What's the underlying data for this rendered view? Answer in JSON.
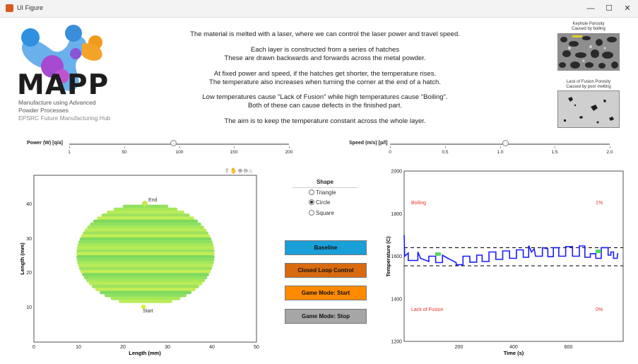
{
  "window": {
    "title": "UI Figure",
    "minimize": "—",
    "maximize": "☐",
    "close": "✕"
  },
  "logo": {
    "word": "MAPP",
    "sub": [
      "Manufacture using Advanced",
      "Powder Processes",
      "EPSRC Future Manufacturing Hub"
    ]
  },
  "description": [
    "The material is melted with a laser, where we can control the laser power and travel speed.",
    "Each layer is constructed from a series of hatches",
    "These are drawn backwards and forwards across the metal powder.",
    "At fixed power and speed, if the hatches get shorter, the temperature rises.",
    "The temperature also increases when turning the corner at the end of a hatch.",
    "Low temperatures cause \"Lack of Fusion\" while high temperatures cause \"Boiling\".",
    "Both of these can cause defects in the finished part.",
    "The aim is to keep the temperature constant across the whole layer."
  ],
  "porosity": {
    "keyhole": {
      "title": "Keyhole Porosity",
      "subtitle": "Caused by boiling"
    },
    "lof": {
      "title": "Lack of Fusion Porosity",
      "subtitle": "Caused by poor melting"
    }
  },
  "power_slider": {
    "label": "Power (W) [q/a]",
    "ticks": [
      "1",
      "50",
      "100",
      "150",
      "200"
    ],
    "min": 1,
    "max": 200,
    "value": 95
  },
  "speed_slider": {
    "label": "Speed (m/s) [p/l]",
    "ticks": [
      "0",
      "0.5",
      "1.0",
      "1.5",
      "2.0"
    ],
    "min": 0,
    "max": 2.0,
    "value": 1.05
  },
  "shape": {
    "title": "Shape",
    "options": [
      "Triangle",
      "Circle",
      "Square"
    ],
    "selected": "Circle"
  },
  "buttons": {
    "baseline": {
      "label": "Baseline",
      "color": "#1aa0d8"
    },
    "closed_loop": {
      "label": "Closed Loop Control",
      "color": "#d86a10"
    },
    "game_start": {
      "label": "Game Mode: Start",
      "color": "#ff8a00"
    },
    "game_stop": {
      "label": "Game Mode: Stop",
      "color": "#a6a6a6"
    }
  },
  "axes_toolbar": "⇪✋⊕⊖⌂",
  "left_plot": {
    "xlabel": "Length (mm)",
    "ylabel": "Length (mm)",
    "xticks": [
      "0",
      "10",
      "20",
      "30",
      "40",
      "50"
    ],
    "yticks": [
      "10",
      "20",
      "30",
      "40"
    ],
    "start_label": "Start",
    "end_label": "End"
  },
  "chart_data": {
    "type": "line",
    "xlabel": "Time (s)",
    "ylabel": "Temperature (C)",
    "xlim": [
      0,
      800
    ],
    "ylim": [
      1200,
      2000
    ],
    "xticks": [
      "200",
      "400",
      "600"
    ],
    "yticks": [
      "1200",
      "1400",
      "1600",
      "1800",
      "2000"
    ],
    "bounds": [
      1555,
      1640
    ],
    "annotations": {
      "boiling": "Boiling",
      "boiling_pct": "1%",
      "lof": "Lack of Fusion",
      "lof_pct": "0%"
    },
    "series": [
      {
        "color": "#1a1aff",
        "points": [
          [
            0,
            1700
          ],
          [
            2,
            1600
          ],
          [
            15,
            1615
          ],
          [
            15,
            1580
          ],
          [
            50,
            1580
          ],
          [
            50,
            1620
          ],
          [
            60,
            1590
          ],
          [
            90,
            1575
          ],
          [
            90,
            1600
          ],
          [
            115,
            1600
          ],
          [
            115,
            1570
          ],
          [
            140,
            1570
          ],
          [
            140,
            1605
          ],
          [
            160,
            1590
          ],
          [
            190,
            1570
          ],
          [
            190,
            1560
          ],
          [
            215,
            1560
          ],
          [
            215,
            1600
          ],
          [
            240,
            1600
          ],
          [
            240,
            1572
          ],
          [
            265,
            1572
          ],
          [
            265,
            1605
          ],
          [
            285,
            1605
          ],
          [
            285,
            1575
          ],
          [
            310,
            1575
          ],
          [
            310,
            1620
          ],
          [
            335,
            1620
          ],
          [
            335,
            1585
          ],
          [
            360,
            1585
          ],
          [
            360,
            1625
          ],
          [
            385,
            1625
          ],
          [
            385,
            1590
          ],
          [
            410,
            1590
          ],
          [
            410,
            1630
          ],
          [
            435,
            1630
          ],
          [
            435,
            1595
          ],
          [
            455,
            1595
          ],
          [
            455,
            1650
          ],
          [
            465,
            1620
          ],
          [
            475,
            1635
          ],
          [
            480,
            1600
          ],
          [
            505,
            1600
          ],
          [
            505,
            1640
          ],
          [
            525,
            1635
          ],
          [
            525,
            1598
          ],
          [
            545,
            1598
          ],
          [
            545,
            1640
          ],
          [
            565,
            1640
          ],
          [
            565,
            1600
          ],
          [
            590,
            1600
          ],
          [
            590,
            1645
          ],
          [
            615,
            1645
          ],
          [
            615,
            1600
          ],
          [
            640,
            1600
          ],
          [
            640,
            1648
          ],
          [
            660,
            1648
          ],
          [
            660,
            1595
          ],
          [
            680,
            1595
          ],
          [
            680,
            1612
          ],
          [
            700,
            1612
          ],
          [
            700,
            1590
          ],
          [
            720,
            1590
          ],
          [
            720,
            1640
          ],
          [
            745,
            1640
          ],
          [
            745,
            1605
          ],
          [
            755,
            1605
          ],
          [
            755,
            1620
          ],
          [
            765,
            1620
          ],
          [
            765,
            1590
          ],
          [
            778,
            1590
          ],
          [
            780,
            1615
          ]
        ]
      }
    ]
  }
}
